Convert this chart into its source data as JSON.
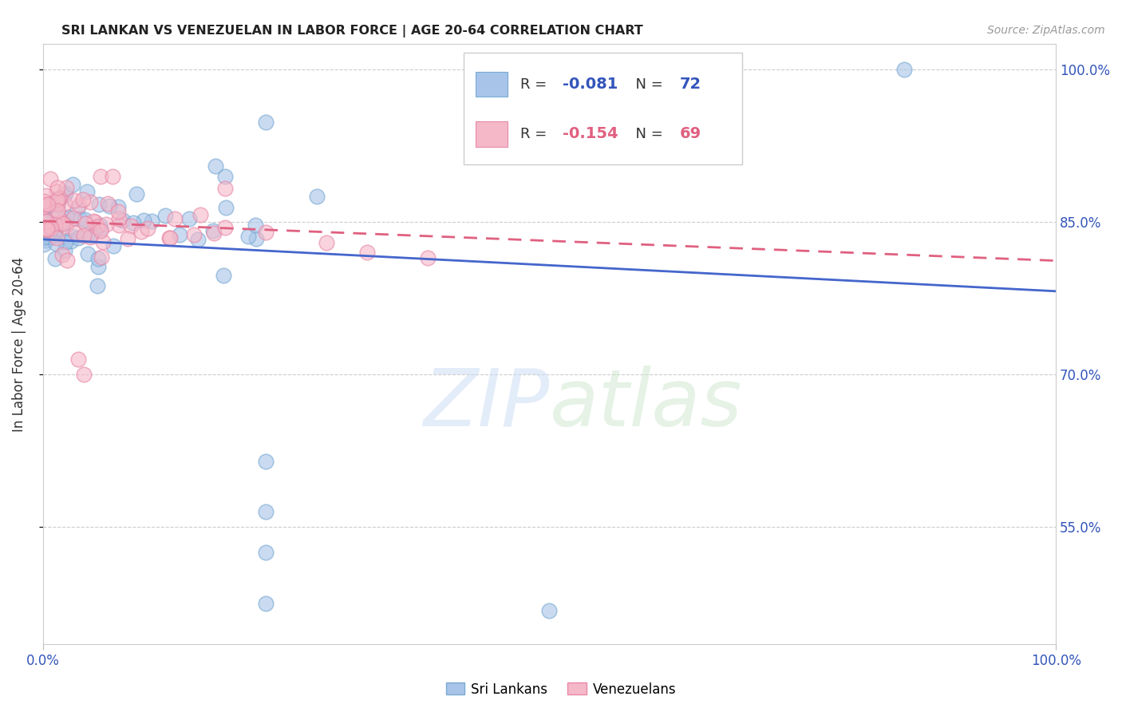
{
  "title": "SRI LANKAN VS VENEZUELAN IN LABOR FORCE | AGE 20-64 CORRELATION CHART",
  "source": "Source: ZipAtlas.com",
  "ylabel": "In Labor Force | Age 20-64",
  "ytick_labels": [
    "100.0%",
    "85.0%",
    "70.0%",
    "55.0%"
  ],
  "ytick_values": [
    1.0,
    0.85,
    0.7,
    0.55
  ],
  "xlim": [
    0.0,
    1.0
  ],
  "ylim": [
    0.435,
    1.025
  ],
  "watermark": "ZIPatlas",
  "sri_lankans_R": -0.081,
  "sri_lankans_N": 72,
  "venezuelans_R": -0.154,
  "venezuelans_N": 69,
  "sri_lankans_color": "#a8c4e8",
  "sri_lankans_edge": "#7aaad4",
  "venezuelans_color": "#f5b8c8",
  "venezuelans_edge": "#e888a8",
  "sri_lankans_line_color": "#4466cc",
  "venezuelans_line_color": "#e06080",
  "legend_R_color": "#3355bb",
  "legend_N_color": "#3355bb",
  "legend_R2_color": "#e06080",
  "legend_N2_color": "#e06080",
  "sl_line_y0": 0.833,
  "sl_line_y1": 0.782,
  "ve_line_y0": 0.851,
  "ve_line_y1": 0.812
}
